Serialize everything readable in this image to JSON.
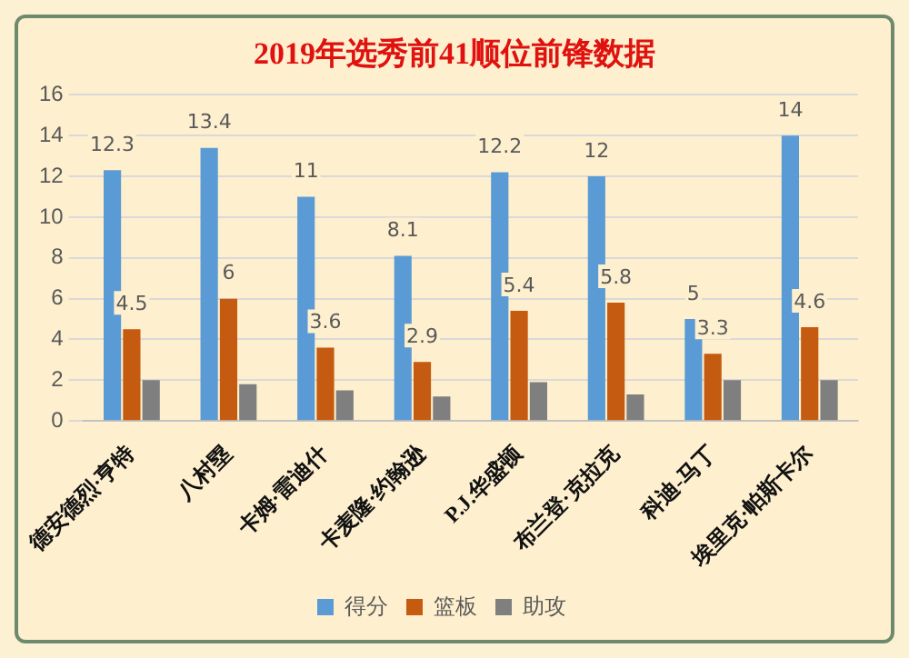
{
  "chart_data": {
    "type": "bar",
    "title": "2019年选秀前41顺位前锋数据",
    "categories": [
      "德安德烈·亨特",
      "八村塁",
      "卡姆·雷迪什",
      "卡麦隆·约翰逊",
      "P.J.华盛顿",
      "布兰登·克拉克",
      "科迪-马丁",
      "埃里克·帕斯卡尔"
    ],
    "series": [
      {
        "name": "得分",
        "color": "#5b9bd5",
        "values": [
          12.3,
          13.4,
          11,
          8.1,
          12.2,
          12,
          5,
          14
        ],
        "value_labels": [
          "12.3",
          "13.4",
          "11",
          "8.1",
          "12.2",
          "12",
          "5",
          "14"
        ]
      },
      {
        "name": "篮板",
        "color": "#c55a11",
        "values": [
          4.5,
          6,
          3.6,
          2.9,
          5.4,
          5.8,
          3.3,
          4.6
        ],
        "value_labels": [
          "4.5",
          "6",
          "3.6",
          "2.9",
          "5.4",
          "5.8",
          "3.3",
          "4.6"
        ]
      },
      {
        "name": "助攻",
        "color": "#7f7f7f",
        "values": [
          2,
          1.8,
          1.5,
          1.2,
          1.9,
          1.3,
          2,
          2
        ],
        "value_labels": [
          null,
          null,
          null,
          null,
          null,
          null,
          null,
          null
        ]
      }
    ],
    "ylim": [
      0,
      16
    ],
    "yticks": [
      0,
      2,
      4,
      6,
      8,
      10,
      12,
      14,
      16
    ],
    "grid": "y",
    "legend": "bottom"
  }
}
